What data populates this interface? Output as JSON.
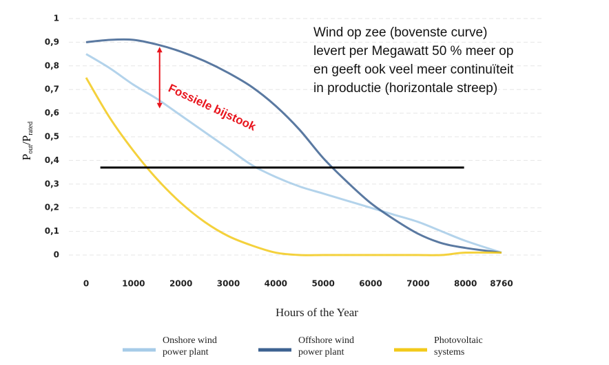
{
  "chart_data": {
    "type": "line",
    "ylabel": [
      "P",
      "out",
      "/P",
      "rated"
    ],
    "xlabel": "Hours of the Year",
    "x": [
      0,
      500,
      1000,
      1500,
      2000,
      2500,
      3000,
      3500,
      4000,
      4500,
      5000,
      5500,
      6000,
      6500,
      7000,
      7500,
      8000,
      8760
    ],
    "series": [
      {
        "name": "Onshore wind power plant",
        "color": "#a6cbe8",
        "values": [
          0.85,
          0.79,
          0.72,
          0.66,
          0.59,
          0.52,
          0.45,
          0.38,
          0.33,
          0.29,
          0.26,
          0.23,
          0.2,
          0.17,
          0.14,
          0.1,
          0.06,
          0.01
        ]
      },
      {
        "name": "Offshore wind power plant",
        "color": "#3d6291",
        "values": [
          0.9,
          0.91,
          0.91,
          0.89,
          0.86,
          0.82,
          0.77,
          0.71,
          0.63,
          0.53,
          0.41,
          0.31,
          0.22,
          0.15,
          0.09,
          0.05,
          0.03,
          0.01
        ]
      },
      {
        "name": "Photovoltaic systems",
        "color": "#f2c91a",
        "values": [
          0.75,
          0.58,
          0.44,
          0.32,
          0.22,
          0.14,
          0.08,
          0.04,
          0.01,
          0.0,
          0.0,
          0.0,
          0.0,
          0.0,
          0.0,
          0.0,
          0.01,
          0.01
        ]
      }
    ],
    "xlim": [
      0,
      8760
    ],
    "xticks": [
      0,
      1000,
      2000,
      3000,
      4000,
      5000,
      6000,
      7000,
      8000,
      8760
    ],
    "ylim": [
      0,
      1
    ],
    "yticks": [
      0,
      {
        "value": 0.1,
        "label": "0,1"
      },
      {
        "value": 0.2,
        "label": "0,2"
      },
      {
        "value": 0.3,
        "label": "0,3"
      },
      {
        "value": 0.4,
        "label": "0,4"
      },
      {
        "value": 0.5,
        "label": "0,5"
      },
      {
        "value": 0.6,
        "label": "0,6"
      },
      {
        "value": 0.7,
        "label": "0,7"
      },
      {
        "value": 0.8,
        "label": "0,8"
      },
      {
        "value": 0.9,
        "label": "0,9"
      },
      1
    ],
    "grid": true,
    "reference_line": {
      "y": 0.37,
      "x": [
        300,
        7970
      ],
      "color": "#000000"
    },
    "arrow": {
      "x": 1550,
      "y": [
        0.88,
        0.62
      ],
      "color": "#e8141c",
      "label": "Fossiele bijstook"
    },
    "note": [
      "Wind op zee (bovenste curve)",
      "levert per Megawatt 50 % meer op",
      "en geeft ook veel meer continuïteit",
      "in productie (horizontale streep)"
    ]
  }
}
